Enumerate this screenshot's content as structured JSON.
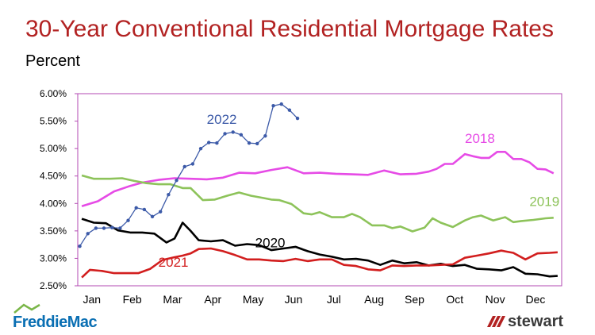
{
  "header": {
    "title": "30-Year Conventional Residential Mortgage Rates",
    "subtitle": "Percent"
  },
  "logos": {
    "left": "FreddieMac",
    "right": "stewart"
  },
  "colors": {
    "title": "#b22222",
    "plot_border": "#b34ab3",
    "s2018": "#e64be6",
    "s2019": "#8dc35a",
    "s2020": "#000000",
    "s2021": "#d21e1e",
    "s2022": "#3c5aa8"
  },
  "chart_data": {
    "type": "line",
    "title": "30-Year Conventional Residential Mortgage Rates",
    "ylabel": "Percent",
    "xlabel": "",
    "x_ticks": [
      "Jan",
      "Feb",
      "Mar",
      "Apr",
      "May",
      "Jun",
      "Jul",
      "Aug",
      "Sep",
      "Oct",
      "Nov",
      "Dec"
    ],
    "y_ticks": [
      "6.00%",
      "5.50%",
      "5.00%",
      "4.50%",
      "4.00%",
      "3.50%",
      "3.00%",
      "2.50%"
    ],
    "ylim": [
      2.5,
      6.0
    ],
    "xlim": [
      0,
      12
    ],
    "grid": false,
    "legend": "inline labels",
    "series": [
      {
        "name": "2018",
        "label_pos": [
          9.6,
          5.1
        ],
        "x": [
          0.1,
          0.5,
          0.9,
          1.3,
          1.6,
          2.0,
          2.4,
          2.8,
          3.2,
          3.6,
          4.0,
          4.4,
          4.8,
          5.2,
          5.6,
          6.0,
          6.4,
          6.8,
          7.2,
          7.6,
          8.0,
          8.4,
          8.7,
          8.9,
          9.1,
          9.3,
          9.6,
          9.8,
          10.0,
          10.2,
          10.4,
          10.6,
          10.8,
          11.0,
          11.2,
          11.4,
          11.6,
          11.8
        ],
        "values": [
          3.95,
          4.04,
          4.22,
          4.32,
          4.38,
          4.43,
          4.46,
          4.45,
          4.44,
          4.47,
          4.56,
          4.55,
          4.61,
          4.66,
          4.55,
          4.56,
          4.54,
          4.53,
          4.52,
          4.6,
          4.53,
          4.54,
          4.58,
          4.63,
          4.72,
          4.72,
          4.9,
          4.86,
          4.83,
          4.83,
          4.94,
          4.94,
          4.81,
          4.81,
          4.75,
          4.63,
          4.62,
          4.55
        ]
      },
      {
        "name": "2019",
        "label_pos": [
          11.2,
          3.95
        ],
        "x": [
          0.1,
          0.4,
          0.8,
          1.1,
          1.4,
          1.7,
          2.0,
          2.3,
          2.6,
          2.8,
          3.1,
          3.4,
          3.7,
          4.0,
          4.3,
          4.6,
          4.8,
          5.0,
          5.3,
          5.6,
          5.8,
          6.0,
          6.3,
          6.6,
          6.8,
          7.0,
          7.3,
          7.6,
          7.8,
          8.0,
          8.3,
          8.6,
          8.8,
          9.0,
          9.3,
          9.6,
          9.8,
          10.0,
          10.3,
          10.6,
          10.8,
          11.0,
          11.3,
          11.6,
          11.8
        ],
        "values": [
          4.51,
          4.45,
          4.45,
          4.46,
          4.41,
          4.37,
          4.35,
          4.35,
          4.28,
          4.28,
          4.06,
          4.07,
          4.14,
          4.2,
          4.14,
          4.1,
          4.07,
          4.06,
          3.99,
          3.82,
          3.8,
          3.84,
          3.75,
          3.75,
          3.81,
          3.75,
          3.6,
          3.6,
          3.55,
          3.58,
          3.49,
          3.56,
          3.73,
          3.65,
          3.57,
          3.69,
          3.75,
          3.78,
          3.69,
          3.75,
          3.66,
          3.68,
          3.7,
          3.73,
          3.74
        ]
      },
      {
        "name": "2020",
        "label_pos": [
          4.4,
          3.2
        ],
        "x": [
          0.1,
          0.4,
          0.7,
          1.0,
          1.3,
          1.6,
          1.9,
          2.2,
          2.4,
          2.6,
          2.8,
          3.0,
          3.3,
          3.6,
          3.9,
          4.2,
          4.5,
          4.8,
          5.1,
          5.4,
          5.7,
          6.0,
          6.3,
          6.6,
          6.9,
          7.2,
          7.5,
          7.8,
          8.1,
          8.4,
          8.7,
          9.0,
          9.3,
          9.6,
          9.9,
          10.2,
          10.5,
          10.8,
          11.1,
          11.4,
          11.7,
          11.9
        ],
        "values": [
          3.72,
          3.65,
          3.64,
          3.51,
          3.47,
          3.47,
          3.45,
          3.29,
          3.36,
          3.65,
          3.5,
          3.33,
          3.31,
          3.33,
          3.23,
          3.26,
          3.24,
          3.15,
          3.18,
          3.21,
          3.13,
          3.07,
          3.03,
          2.98,
          2.99,
          2.96,
          2.88,
          2.96,
          2.91,
          2.93,
          2.87,
          2.9,
          2.86,
          2.88,
          2.81,
          2.8,
          2.78,
          2.84,
          2.72,
          2.71,
          2.67,
          2.68
        ]
      },
      {
        "name": "2021",
        "label_pos": [
          2.0,
          2.85
        ],
        "x": [
          0.1,
          0.3,
          0.6,
          0.9,
          1.2,
          1.5,
          1.8,
          2.1,
          2.4,
          2.6,
          2.8,
          3.0,
          3.3,
          3.6,
          3.9,
          4.2,
          4.5,
          4.8,
          5.1,
          5.4,
          5.7,
          6.0,
          6.3,
          6.6,
          6.9,
          7.2,
          7.5,
          7.8,
          8.1,
          8.4,
          8.7,
          9.0,
          9.3,
          9.6,
          9.9,
          10.2,
          10.5,
          10.8,
          11.1,
          11.4,
          11.7,
          11.9
        ],
        "values": [
          2.65,
          2.79,
          2.77,
          2.73,
          2.73,
          2.73,
          2.81,
          2.97,
          3.02,
          3.05,
          3.09,
          3.17,
          3.18,
          3.13,
          3.06,
          2.98,
          2.98,
          2.96,
          2.95,
          2.99,
          2.95,
          2.98,
          2.98,
          2.88,
          2.86,
          2.8,
          2.78,
          2.87,
          2.86,
          2.87,
          2.87,
          2.88,
          2.89,
          3.01,
          3.05,
          3.09,
          3.14,
          3.1,
          2.98,
          3.09,
          3.1,
          3.11
        ]
      },
      {
        "name": "2022",
        "label_pos": [
          3.2,
          5.45
        ],
        "x": [
          0.05,
          0.25,
          0.45,
          0.65,
          0.85,
          1.05,
          1.25,
          1.45,
          1.65,
          1.85,
          2.05,
          2.25,
          2.45,
          2.65,
          2.85,
          3.05,
          3.25,
          3.45,
          3.65,
          3.85,
          4.05,
          4.25,
          4.45,
          4.65,
          4.85,
          5.05,
          5.25,
          5.45
        ],
        "values": [
          3.22,
          3.45,
          3.55,
          3.55,
          3.56,
          3.55,
          3.69,
          3.92,
          3.89,
          3.76,
          3.85,
          4.16,
          4.42,
          4.67,
          4.72,
          5.0,
          5.11,
          5.1,
          5.27,
          5.3,
          5.25,
          5.1,
          5.09,
          5.23,
          5.78,
          5.81,
          5.7,
          5.55
        ]
      }
    ]
  }
}
